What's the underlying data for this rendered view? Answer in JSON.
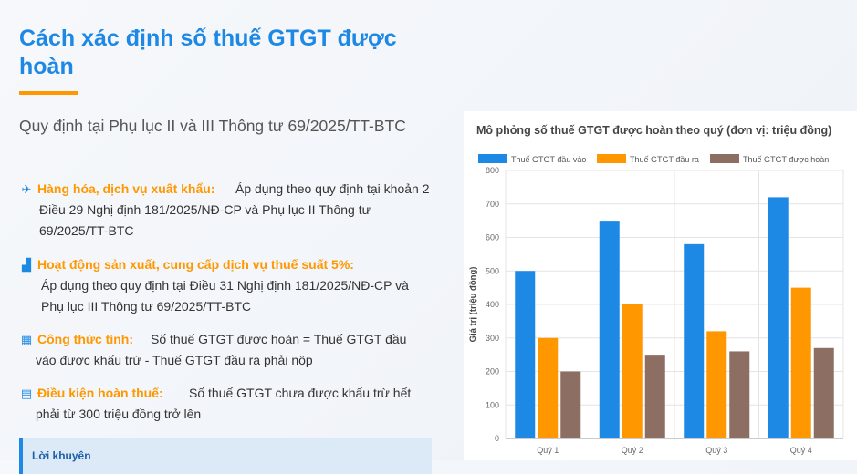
{
  "left": {
    "title": "Cách xác định số thuế GTGT được hoàn",
    "subtitle": "Quy định tại Phụ lục II và III Thông tư 69/2025/TT-BTC",
    "items": [
      {
        "icon": "airplane-icon",
        "label": "Hàng hóa, dịch vụ xuất khẩu:",
        "desc": "Áp dụng theo quy định tại khoản 2 Điều 29 Nghị định 181/2025/NĐ-CP và Phụ lục II Thông tư 69/2025/TT-BTC"
      },
      {
        "icon": "factory-icon",
        "label": "Hoạt động sản xuất, cung cấp dịch vụ thuế suất 5%:",
        "desc": "Áp dụng theo quy định tại Điều 31 Nghị định 181/2025/NĐ-CP và Phụ lục III Thông tư 69/2025/TT-BTC"
      },
      {
        "icon": "calculator-icon",
        "label": "Công thức tính:",
        "desc": "Số thuế GTGT được hoàn = Thuế GTGT đầu vào được khấu trừ - Thuế GTGT đầu ra phải nộp"
      },
      {
        "icon": "document-icon",
        "label": "Điều kiện hoàn thuế:",
        "desc": "Số thuế GTGT chưa được khấu trừ hết phải từ 300 triệu đồng trở lên"
      }
    ],
    "advice_label": "Lời khuyên"
  },
  "chart_data": {
    "type": "bar",
    "title": "Mô phỏng số thuế GTGT được hoàn theo quý (đơn vị: triệu đồng)",
    "categories": [
      "Quý 1",
      "Quý 2",
      "Quý 3",
      "Quý 4"
    ],
    "series": [
      {
        "name": "Thuế GTGT đầu vào",
        "values": [
          500,
          650,
          580,
          720
        ],
        "color": "#1e88e5"
      },
      {
        "name": "Thuế GTGT đầu ra",
        "values": [
          300,
          400,
          320,
          450
        ],
        "color": "#ff9800"
      },
      {
        "name": "Thuế GTGT được hoàn",
        "values": [
          200,
          250,
          260,
          270
        ],
        "color": "#8d6e63"
      }
    ],
    "ylabel": "Giá trị (triệu đồng)",
    "xlabel": "",
    "ylim": [
      0,
      800
    ],
    "yticks": [
      0,
      100,
      200,
      300,
      400,
      500,
      600,
      700,
      800
    ],
    "grid": true,
    "legend": "top"
  }
}
